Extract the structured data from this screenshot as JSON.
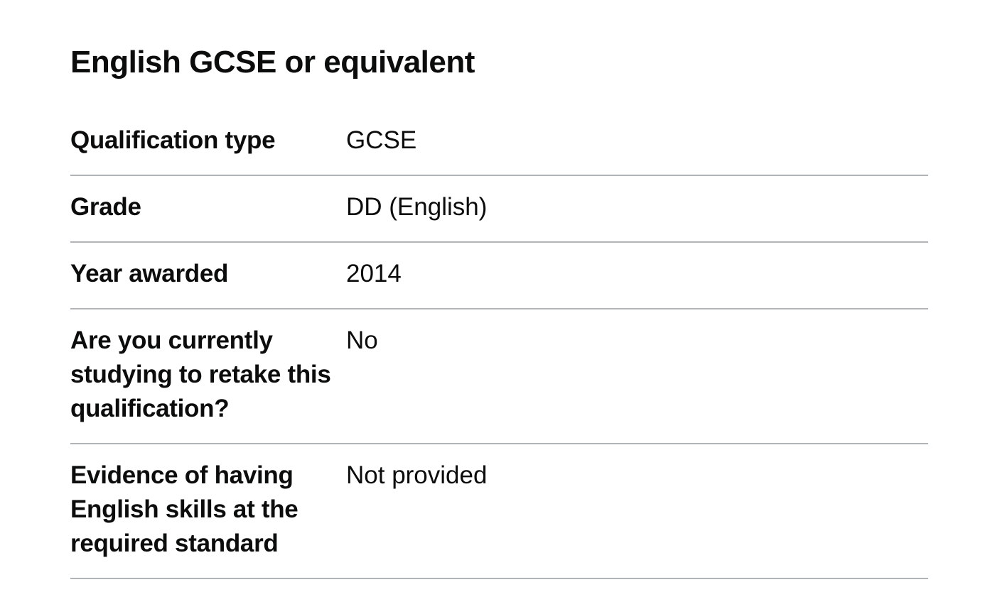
{
  "page": {
    "title": "English GCSE or equivalent"
  },
  "summary": {
    "rows": [
      {
        "key": "Qualification type",
        "value": "GCSE"
      },
      {
        "key": "Grade",
        "value": "DD (English)"
      },
      {
        "key": "Year awarded",
        "value": "2014"
      },
      {
        "key": "Are you currently studying to retake this qualification?",
        "value": "No"
      },
      {
        "key": "Evidence of having English skills at the required standard",
        "value": "Not provided"
      }
    ]
  },
  "colors": {
    "text": "#0b0c0c",
    "divider": "#b1b4b6",
    "background": "#ffffff"
  }
}
